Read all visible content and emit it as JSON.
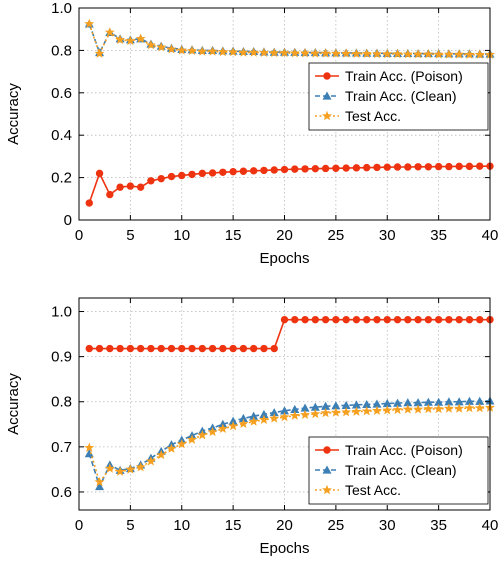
{
  "chart_data": [
    {
      "type": "line",
      "xlabel": "Epochs",
      "ylabel": "Accuracy",
      "xlim": [
        0,
        40
      ],
      "ylim": [
        0,
        1.0
      ],
      "xticks": [
        0,
        5,
        10,
        15,
        20,
        25,
        30,
        35,
        40
      ],
      "xtick_labels": [
        "0",
        "5",
        "10",
        "15",
        "20",
        "25",
        "30",
        "35",
        "40"
      ],
      "yticks": [
        0,
        0.2,
        0.4,
        0.6,
        0.8,
        1.0
      ],
      "ytick_labels": [
        "0",
        "0.2",
        "0.4",
        "0.6",
        "0.8",
        "1.0"
      ],
      "grid": true,
      "legend_position": "center-right",
      "x": [
        1,
        2,
        3,
        4,
        5,
        6,
        7,
        8,
        9,
        10,
        11,
        12,
        13,
        14,
        15,
        16,
        17,
        18,
        19,
        20,
        21,
        22,
        23,
        24,
        25,
        26,
        27,
        28,
        29,
        30,
        31,
        32,
        33,
        34,
        35,
        36,
        37,
        38,
        39,
        40
      ],
      "series": [
        {
          "name": "Train Acc. (Poison)",
          "color": "#ee3311",
          "marker": "circle",
          "dash": "solid",
          "values": [
            0.08,
            0.22,
            0.12,
            0.155,
            0.16,
            0.155,
            0.185,
            0.195,
            0.205,
            0.21,
            0.215,
            0.22,
            0.222,
            0.225,
            0.228,
            0.23,
            0.232,
            0.234,
            0.236,
            0.238,
            0.24,
            0.241,
            0.242,
            0.243,
            0.244,
            0.245,
            0.246,
            0.247,
            0.248,
            0.249,
            0.25,
            0.25,
            0.251,
            0.251,
            0.252,
            0.252,
            0.253,
            0.253,
            0.254,
            0.254
          ]
        },
        {
          "name": "Train Acc. (Clean)",
          "color": "#3c7fb5",
          "marker": "triangle",
          "dash": "dashed",
          "values": [
            0.925,
            0.79,
            0.885,
            0.855,
            0.85,
            0.855,
            0.83,
            0.82,
            0.81,
            0.805,
            0.803,
            0.8,
            0.8,
            0.798,
            0.797,
            0.795,
            0.795,
            0.793,
            0.792,
            0.792,
            0.791,
            0.79,
            0.79,
            0.789,
            0.789,
            0.788,
            0.788,
            0.787,
            0.787,
            0.786,
            0.786,
            0.786,
            0.785,
            0.785,
            0.785,
            0.784,
            0.784,
            0.784,
            0.783,
            0.783
          ]
        },
        {
          "name": "Test Acc.",
          "color": "#f5a020",
          "marker": "star",
          "dash": "dotted",
          "values": [
            0.925,
            0.785,
            0.885,
            0.85,
            0.845,
            0.855,
            0.825,
            0.815,
            0.805,
            0.8,
            0.798,
            0.795,
            0.795,
            0.793,
            0.792,
            0.79,
            0.79,
            0.789,
            0.788,
            0.788,
            0.787,
            0.787,
            0.786,
            0.786,
            0.785,
            0.785,
            0.784,
            0.784,
            0.783,
            0.783,
            0.783,
            0.782,
            0.782,
            0.782,
            0.781,
            0.781,
            0.781,
            0.78,
            0.78,
            0.78
          ]
        }
      ]
    },
    {
      "type": "line",
      "xlabel": "Epochs",
      "ylabel": "Accuracy",
      "xlim": [
        0,
        40
      ],
      "ylim": [
        0.56,
        1.03
      ],
      "xticks": [
        0,
        5,
        10,
        15,
        20,
        25,
        30,
        35,
        40
      ],
      "xtick_labels": [
        "0",
        "5",
        "10",
        "15",
        "20",
        "25",
        "30",
        "35",
        "40"
      ],
      "yticks": [
        0.6,
        0.7,
        0.8,
        0.9,
        1.0
      ],
      "ytick_labels": [
        "0.6",
        "0.7",
        "0.8",
        "0.9",
        "1.0"
      ],
      "grid": true,
      "legend_position": "bottom-right",
      "x": [
        1,
        2,
        3,
        4,
        5,
        6,
        7,
        8,
        9,
        10,
        11,
        12,
        13,
        14,
        15,
        16,
        17,
        18,
        19,
        20,
        21,
        22,
        23,
        24,
        25,
        26,
        27,
        28,
        29,
        30,
        31,
        32,
        33,
        34,
        35,
        36,
        37,
        38,
        39,
        40
      ],
      "series": [
        {
          "name": "Train Acc. (Poison)",
          "color": "#ee3311",
          "marker": "circle",
          "dash": "solid",
          "values": [
            0.918,
            0.918,
            0.918,
            0.918,
            0.918,
            0.918,
            0.918,
            0.918,
            0.918,
            0.918,
            0.918,
            0.918,
            0.918,
            0.918,
            0.918,
            0.918,
            0.918,
            0.918,
            0.918,
            0.982,
            0.982,
            0.982,
            0.982,
            0.982,
            0.982,
            0.982,
            0.982,
            0.982,
            0.982,
            0.982,
            0.982,
            0.982,
            0.982,
            0.982,
            0.982,
            0.982,
            0.982,
            0.982,
            0.982,
            0.982
          ]
        },
        {
          "name": "Train Acc. (Clean)",
          "color": "#3c7fb5",
          "marker": "triangle",
          "dash": "dashed",
          "values": [
            0.685,
            0.612,
            0.66,
            0.648,
            0.652,
            0.66,
            0.675,
            0.69,
            0.705,
            0.715,
            0.725,
            0.735,
            0.742,
            0.75,
            0.757,
            0.763,
            0.768,
            0.772,
            0.776,
            0.78,
            0.783,
            0.786,
            0.788,
            0.79,
            0.791,
            0.792,
            0.793,
            0.794,
            0.795,
            0.796,
            0.797,
            0.798,
            0.798,
            0.799,
            0.799,
            0.8,
            0.8,
            0.801,
            0.801,
            0.802
          ]
        },
        {
          "name": "Test Acc.",
          "color": "#f5a020",
          "marker": "star",
          "dash": "dotted",
          "values": [
            0.698,
            0.622,
            0.652,
            0.645,
            0.65,
            0.655,
            0.668,
            0.682,
            0.696,
            0.706,
            0.716,
            0.726,
            0.733,
            0.74,
            0.746,
            0.751,
            0.756,
            0.76,
            0.763,
            0.766,
            0.769,
            0.771,
            0.773,
            0.775,
            0.776,
            0.777,
            0.778,
            0.779,
            0.78,
            0.781,
            0.782,
            0.783,
            0.783,
            0.784,
            0.784,
            0.785,
            0.785,
            0.786,
            0.786,
            0.787
          ]
        }
      ]
    }
  ]
}
